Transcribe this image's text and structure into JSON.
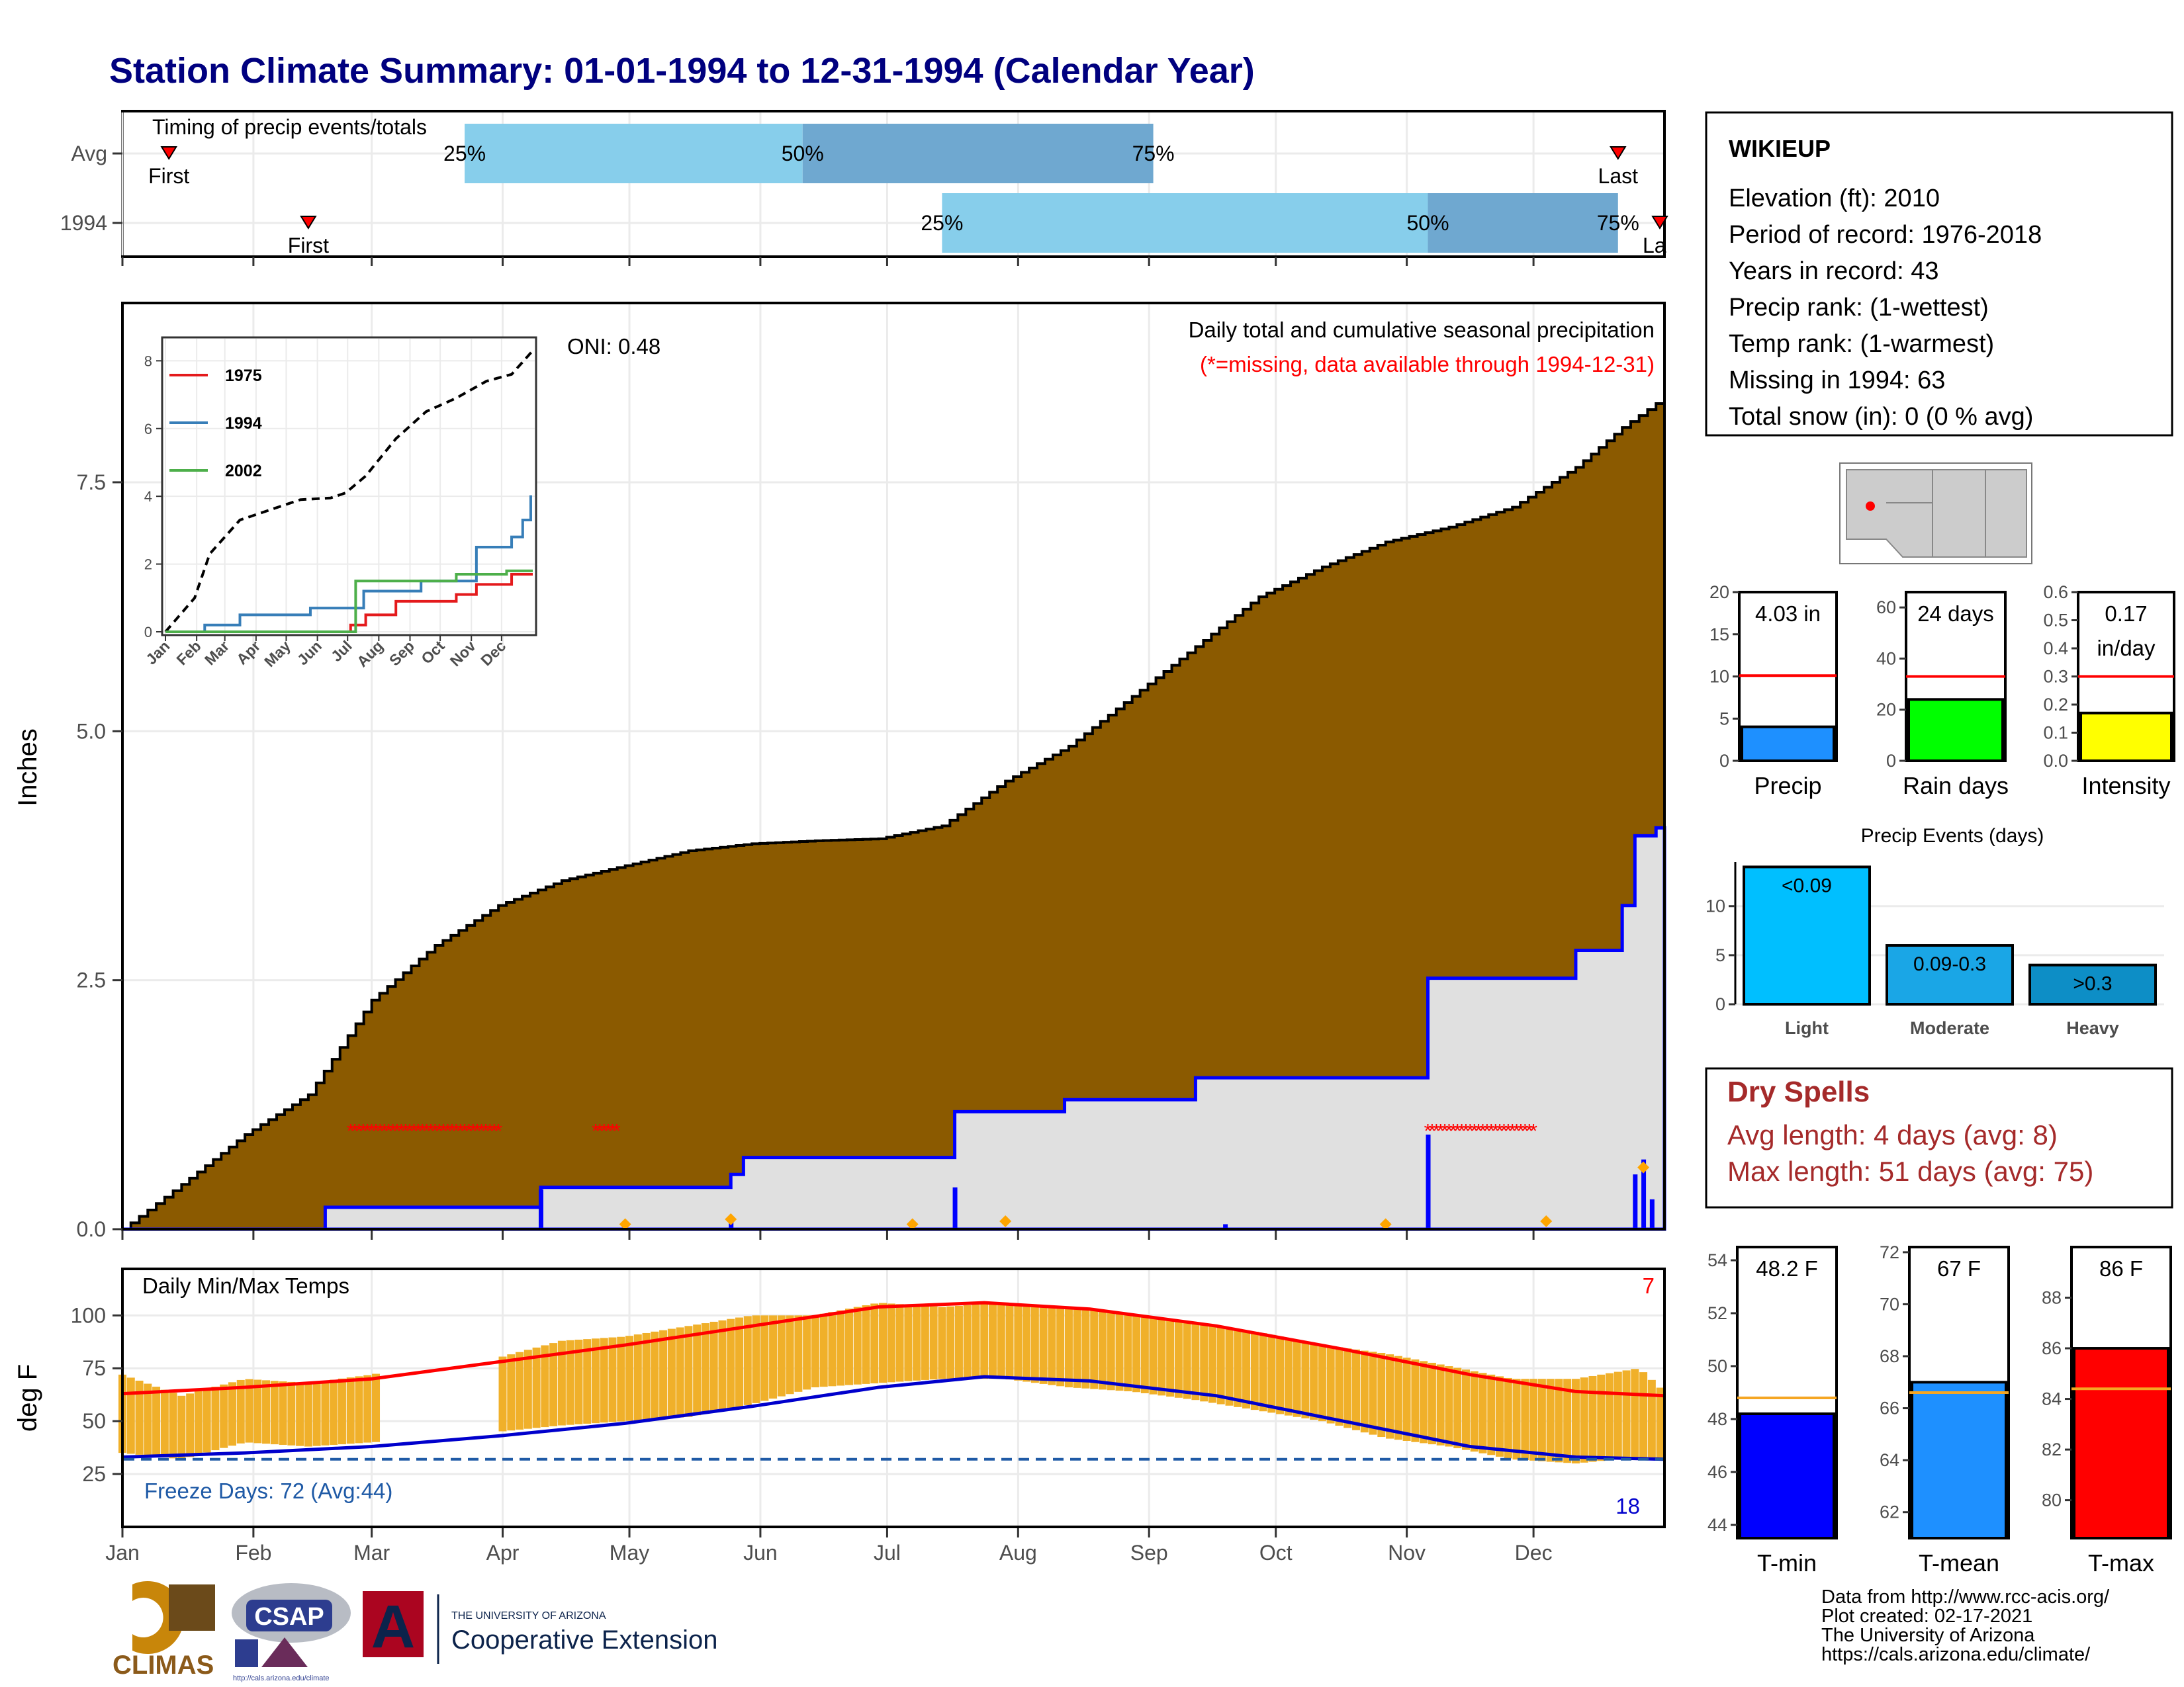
{
  "title": "Station Climate Summary: 01-01-1994 to 12-31-1994 (Calendar Year)",
  "months": [
    "Jan",
    "Feb",
    "Mar",
    "Apr",
    "May",
    "Jun",
    "Jul",
    "Aug",
    "Sep",
    "Oct",
    "Nov",
    "Dec"
  ],
  "colors": {
    "title": "#00007f",
    "precip_fill": "#8b5a00",
    "current_fill": "#e0e0e0",
    "current_line": "#0000ff",
    "band_light": "#87ceeb",
    "band_dark": "#6fa8d0",
    "temp_bar": "#f0b02a",
    "avg_max": "#ff0000",
    "avg_min": "#0000cc",
    "freeze_line": "#1f5aa6",
    "dry_spells": "#a52a2a",
    "precip_bar": "#1e90ff",
    "rain_days_bar": "#00ff00",
    "intensity_bar": "#ffff00",
    "events_light": "#00bfff",
    "events_moderate": "#1aa6e6",
    "events_heavy": "#0d8ec6",
    "tmin_bar": "#0000ff",
    "tmean_bar": "#1e90ff",
    "tmax_bar": "#ff0000",
    "avg_marker": "#f5a623"
  },
  "timing": {
    "label": "Timing of precip events/totals",
    "rows": [
      {
        "name": "Avg",
        "first_doy": 12,
        "last_doy": 355,
        "p25_doy": 82,
        "p50_doy": 162,
        "p75_doy": 245,
        "first_label": "First",
        "last_label": "Last",
        "p25": "25%",
        "p50": "50%",
        "p75": "75%"
      },
      {
        "name": "1994",
        "first_doy": 45,
        "last_doy": 366,
        "p25_doy": 195,
        "p50_doy": 310,
        "p75_doy": 355,
        "first_label": "First",
        "last_label": "La",
        "p25": "25%",
        "p50": "50%",
        "p75": "75%"
      }
    ]
  },
  "chart_data": [
    {
      "type": "area",
      "title": "Daily total and cumulative seasonal precipitation",
      "subtitle": "(*=missing, data available through 1994-12-31)",
      "annotation": "ONI: 0.48",
      "ylabel": "Inches",
      "ylim": [
        0,
        9.3
      ],
      "yticks": [
        "0.0",
        "2.5",
        "5.0",
        "7.5"
      ],
      "xticks": [
        "Jan",
        "Feb",
        "Mar",
        "Apr",
        "May",
        "Jun",
        "Jul",
        "Aug",
        "Sep",
        "Oct",
        "Nov",
        "Dec"
      ],
      "series": [
        {
          "name": "Average cumulative",
          "points": [
            [
              1,
              0
            ],
            [
              15,
              0.45
            ],
            [
              30,
              0.95
            ],
            [
              45,
              1.35
            ],
            [
              60,
              2.3
            ],
            [
              75,
              2.85
            ],
            [
              90,
              3.25
            ],
            [
              105,
              3.5
            ],
            [
              120,
              3.65
            ],
            [
              135,
              3.8
            ],
            [
              150,
              3.87
            ],
            [
              165,
              3.9
            ],
            [
              180,
              3.92
            ],
            [
              195,
              4.05
            ],
            [
              210,
              4.5
            ],
            [
              225,
              4.85
            ],
            [
              240,
              5.35
            ],
            [
              255,
              5.85
            ],
            [
              270,
              6.35
            ],
            [
              285,
              6.65
            ],
            [
              300,
              6.9
            ],
            [
              315,
              7.05
            ],
            [
              330,
              7.25
            ],
            [
              345,
              7.65
            ],
            [
              356,
              8.05
            ],
            [
              366,
              8.35
            ]
          ]
        },
        {
          "name": "1994 cumulative",
          "points": [
            [
              1,
              0
            ],
            [
              49,
              0
            ],
            [
              49,
              0.22
            ],
            [
              100,
              0.22
            ],
            [
              100,
              0.42
            ],
            [
              145,
              0.42
            ],
            [
              145,
              0.55
            ],
            [
              148,
              0.55
            ],
            [
              148,
              0.72
            ],
            [
              198,
              0.72
            ],
            [
              198,
              1.18
            ],
            [
              224,
              1.18
            ],
            [
              224,
              1.3
            ],
            [
              255,
              1.3
            ],
            [
              255,
              1.52
            ],
            [
              310,
              1.52
            ],
            [
              310,
              2.52
            ],
            [
              345,
              2.52
            ],
            [
              345,
              2.8
            ],
            [
              356,
              2.8
            ],
            [
              356,
              3.25
            ],
            [
              359,
              3.25
            ],
            [
              359,
              3.95
            ],
            [
              364,
              3.95
            ],
            [
              364,
              4.03
            ]
          ]
        }
      ],
      "daily_bars": [
        [
          100,
          0.4
        ],
        [
          145,
          0.08
        ],
        [
          198,
          0.42
        ],
        [
          262,
          0.05
        ],
        [
          310,
          0.95
        ],
        [
          359,
          0.55
        ],
        [
          361,
          0.7
        ],
        [
          363,
          0.3
        ]
      ],
      "missing_marks": [
        [
          55,
          90
        ],
        [
          113,
          118
        ],
        [
          310,
          335
        ]
      ],
      "avg_markers": [
        [
          120,
          0.05
        ],
        [
          145,
          0.1
        ],
        [
          188,
          0.05
        ],
        [
          210,
          0.08
        ],
        [
          300,
          0.05
        ],
        [
          338,
          0.08
        ],
        [
          361,
          0.62
        ]
      ]
    },
    {
      "type": "line",
      "legend": [
        "1975",
        "1994",
        "2002"
      ],
      "yticks": [
        "0",
        "2",
        "4",
        "6",
        "8"
      ],
      "ylim": [
        0,
        8.3
      ],
      "xticks": [
        "Jan",
        "Feb",
        "Mar",
        "Apr",
        "May",
        "Jun",
        "Jul",
        "Aug",
        "Sep",
        "Oct",
        "Nov",
        "Dec"
      ],
      "series": [
        {
          "name": "Average",
          "points": [
            [
              1,
              0
            ],
            [
              30,
              1
            ],
            [
              45,
              2.3
            ],
            [
              75,
              3.3
            ],
            [
              105,
              3.6
            ],
            [
              135,
              3.9
            ],
            [
              165,
              3.95
            ],
            [
              180,
              4.1
            ],
            [
              200,
              4.6
            ],
            [
              230,
              5.7
            ],
            [
              260,
              6.5
            ],
            [
              290,
              6.9
            ],
            [
              320,
              7.4
            ],
            [
              345,
              7.6
            ],
            [
              366,
              8.3
            ]
          ]
        },
        {
          "name": "1975",
          "points": [
            [
              1,
              0
            ],
            [
              185,
              0
            ],
            [
              185,
              0.2
            ],
            [
              200,
              0.2
            ],
            [
              200,
              0.5
            ],
            [
              230,
              0.5
            ],
            [
              230,
              0.9
            ],
            [
              290,
              0.9
            ],
            [
              290,
              1.1
            ],
            [
              310,
              1.1
            ],
            [
              310,
              1.4
            ],
            [
              345,
              1.4
            ],
            [
              345,
              1.7
            ],
            [
              366,
              1.7
            ]
          ]
        },
        {
          "name": "1994",
          "points": [
            [
              1,
              0
            ],
            [
              40,
              0
            ],
            [
              40,
              0.2
            ],
            [
              75,
              0.2
            ],
            [
              75,
              0.5
            ],
            [
              145,
              0.5
            ],
            [
              145,
              0.7
            ],
            [
              198,
              0.7
            ],
            [
              198,
              1.2
            ],
            [
              255,
              1.2
            ],
            [
              255,
              1.5
            ],
            [
              310,
              1.5
            ],
            [
              310,
              2.5
            ],
            [
              345,
              2.5
            ],
            [
              345,
              2.8
            ],
            [
              356,
              2.8
            ],
            [
              356,
              3.3
            ],
            [
              364,
              3.3
            ],
            [
              364,
              4.03
            ]
          ]
        },
        {
          "name": "2002",
          "points": [
            [
              1,
              0
            ],
            [
              190,
              0
            ],
            [
              190,
              1.5
            ],
            [
              290,
              1.5
            ],
            [
              290,
              1.7
            ],
            [
              340,
              1.7
            ],
            [
              340,
              1.8
            ],
            [
              366,
              1.8
            ]
          ]
        }
      ]
    },
    {
      "type": "bar",
      "title": "Daily Min/Max Temps",
      "ylabel": "deg F",
      "ylim": [
        0,
        122
      ],
      "yticks": [
        "25",
        "50",
        "75",
        "100"
      ],
      "xticks": [
        "Jan",
        "Feb",
        "Mar",
        "Apr",
        "May",
        "Jun",
        "Jul",
        "Aug",
        "Sep",
        "Oct",
        "Nov",
        "Dec"
      ],
      "freeze_label": "Freeze Days: 72 (Avg:44)",
      "freeze_value": 32,
      "count_top": "7",
      "count_bottom": "18",
      "avg_max": [
        [
          1,
          63
        ],
        [
          30,
          66
        ],
        [
          60,
          70
        ],
        [
          90,
          78
        ],
        [
          120,
          86
        ],
        [
          150,
          95
        ],
        [
          180,
          104
        ],
        [
          205,
          106
        ],
        [
          230,
          103
        ],
        [
          260,
          95
        ],
        [
          290,
          84
        ],
        [
          320,
          72
        ],
        [
          345,
          64
        ],
        [
          366,
          62
        ]
      ],
      "avg_min": [
        [
          1,
          33
        ],
        [
          30,
          35
        ],
        [
          60,
          38
        ],
        [
          90,
          43
        ],
        [
          120,
          49
        ],
        [
          150,
          57
        ],
        [
          180,
          66
        ],
        [
          205,
          71
        ],
        [
          230,
          69
        ],
        [
          260,
          62
        ],
        [
          290,
          50
        ],
        [
          320,
          38
        ],
        [
          345,
          33
        ],
        [
          366,
          32
        ]
      ],
      "daily_max": [
        [
          1,
          72
        ],
        [
          15,
          62
        ],
        [
          30,
          70
        ],
        [
          45,
          68
        ],
        [
          60,
          72
        ],
        [
          75,
          78
        ],
        [
          90,
          80
        ],
        [
          105,
          88
        ],
        [
          120,
          90
        ],
        [
          135,
          95
        ],
        [
          150,
          100
        ],
        [
          165,
          100
        ],
        [
          180,
          106
        ],
        [
          195,
          104
        ],
        [
          210,
          106
        ],
        [
          225,
          104
        ],
        [
          240,
          100
        ],
        [
          255,
          96
        ],
        [
          270,
          92
        ],
        [
          285,
          86
        ],
        [
          300,
          82
        ],
        [
          315,
          76
        ],
        [
          330,
          70
        ],
        [
          345,
          70
        ],
        [
          360,
          75
        ],
        [
          366,
          64
        ]
      ],
      "daily_min": [
        [
          1,
          35
        ],
        [
          15,
          32
        ],
        [
          30,
          40
        ],
        [
          45,
          38
        ],
        [
          60,
          40
        ],
        [
          75,
          42
        ],
        [
          90,
          45
        ],
        [
          105,
          48
        ],
        [
          120,
          50
        ],
        [
          135,
          52
        ],
        [
          150,
          58
        ],
        [
          165,
          66
        ],
        [
          180,
          68
        ],
        [
          195,
          70
        ],
        [
          210,
          70
        ],
        [
          225,
          66
        ],
        [
          240,
          64
        ],
        [
          255,
          60
        ],
        [
          270,
          55
        ],
        [
          285,
          50
        ],
        [
          300,
          42
        ],
        [
          315,
          38
        ],
        [
          330,
          32
        ],
        [
          345,
          30
        ],
        [
          360,
          33
        ],
        [
          366,
          31
        ]
      ],
      "missing_ranges": [
        [
          62,
          90
        ]
      ]
    },
    {
      "type": "bar",
      "title": "Precip",
      "value_label": "4.03 in",
      "ylim": [
        0,
        20
      ],
      "yticks": [
        "0",
        "5",
        "10",
        "15",
        "20"
      ],
      "value": 4.03,
      "avg": 10.1
    },
    {
      "type": "bar",
      "title": "Rain days",
      "value_label": "24 days",
      "ylim": [
        0,
        66
      ],
      "yticks": [
        "0",
        "20",
        "40",
        "60"
      ],
      "value": 24,
      "avg": 33
    },
    {
      "type": "bar",
      "title": "Intensity",
      "value_label_1": "0.17",
      "value_label_2": "in/day",
      "ylim": [
        0,
        0.6
      ],
      "yticks": [
        "0.0",
        "0.1",
        "0.2",
        "0.3",
        "0.4",
        "0.5",
        "0.6"
      ],
      "value": 0.17,
      "avg": 0.3
    },
    {
      "type": "bar",
      "title": "Precip Events (days)",
      "categories": [
        "Light",
        "Moderate",
        "Heavy"
      ],
      "bar_labels": [
        "<0.09",
        "0.09-0.3",
        ">0.3"
      ],
      "values": [
        14,
        6,
        4
      ],
      "ylim": [
        0,
        14.5
      ],
      "yticks": [
        "0",
        "5",
        "10"
      ]
    },
    {
      "type": "bar",
      "title": "T-min",
      "value_label": "48.2 F",
      "ylim": [
        43.5,
        54.5
      ],
      "yticks": [
        "44",
        "46",
        "48",
        "50",
        "52",
        "54"
      ],
      "value": 48.2,
      "avg": 48.8
    },
    {
      "type": "bar",
      "title": "T-mean",
      "value_label": "67 F",
      "ylim": [
        61,
        72.2
      ],
      "yticks": [
        "62",
        "64",
        "66",
        "68",
        "70",
        "72"
      ],
      "value": 67,
      "avg": 66.6
    },
    {
      "type": "bar",
      "title": "T-max",
      "value_label": "86 F",
      "ylim": [
        78.5,
        90
      ],
      "yticks": [
        "80",
        "82",
        "84",
        "86",
        "88"
      ],
      "value": 86,
      "avg": 84.4
    }
  ],
  "station": {
    "name": "WIKIEUP",
    "lines": [
      "Elevation (ft): 2010",
      "Period of record: 1976-2018",
      "Years in record: 43",
      "Precip rank:  (1-wettest)",
      "Temp rank:  (1-warmest)",
      "Missing in 1994: 63",
      "Total snow (in): 0 (0 % avg)"
    ]
  },
  "dry_spells": {
    "title": "Dry Spells",
    "avg_length": "Avg length: 4 days (avg: 8)",
    "max_length": "Max length: 51 days (avg: 75)"
  },
  "footer": {
    "lines": [
      "Data from http://www.rcc-acis.org/",
      "Plot created: 02-17-2021",
      "The University of Arizona",
      "https://cals.arizona.edu/climate/"
    ],
    "logo_climas": "CLIMAS",
    "logo_csap": "CSAP",
    "logo_csap_url": "http://cals.arizona.edu/climate",
    "logo_ua_top": "THE UNIVERSITY OF ARIZONA",
    "logo_ua_bottom": "Cooperative Extension",
    "logo_ua_letter": "A"
  }
}
